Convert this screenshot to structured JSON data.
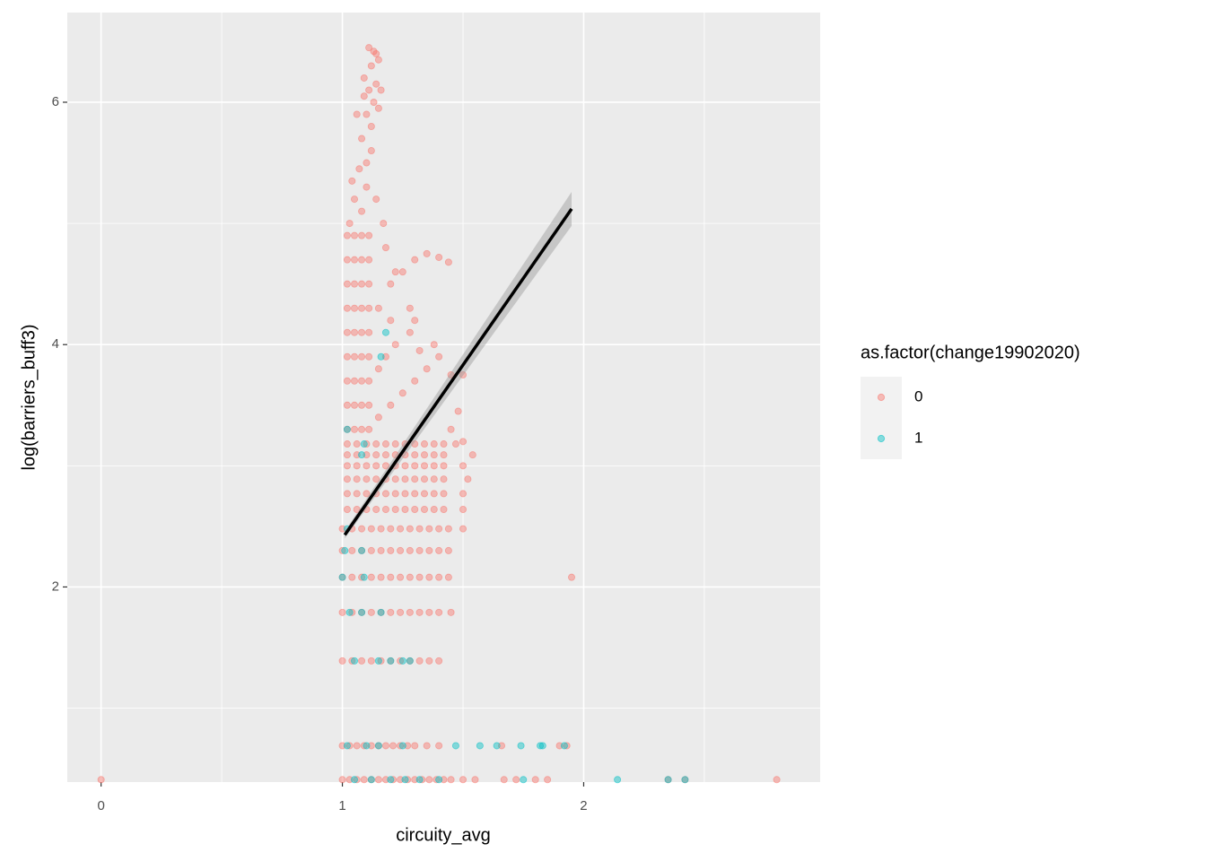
{
  "chart_data": {
    "type": "scatter",
    "x_label": "circuity_avg",
    "y_label": "log(barriers_buff3)",
    "legend_title": "as.factor(change19902020)",
    "legend_position": "right",
    "xlim": [
      -0.14,
      2.98
    ],
    "ylim": [
      0.39,
      6.74
    ],
    "xticks": [
      0,
      1,
      2
    ],
    "yticks": [
      2,
      4,
      6
    ],
    "minor_xticks": [
      0.5,
      1.5,
      2.5
    ],
    "minor_yticks": [
      1,
      3,
      5
    ],
    "grid": true,
    "series": [
      {
        "name": "0",
        "color": "#F8766D",
        "values": [
          [
            0,
            0.41
          ],
          [
            1,
            0.41
          ],
          [
            1.03,
            0.41
          ],
          [
            1.06,
            0.41
          ],
          [
            1.09,
            0.41
          ],
          [
            1.12,
            0.41
          ],
          [
            1.15,
            0.41
          ],
          [
            1.18,
            0.41
          ],
          [
            1.21,
            0.41
          ],
          [
            1.24,
            0.41
          ],
          [
            1.27,
            0.41
          ],
          [
            1.3,
            0.41
          ],
          [
            1.33,
            0.41
          ],
          [
            1.36,
            0.41
          ],
          [
            1.39,
            0.41
          ],
          [
            1.42,
            0.41
          ],
          [
            1.45,
            0.41
          ],
          [
            1.5,
            0.41
          ],
          [
            1.55,
            0.41
          ],
          [
            1.67,
            0.41
          ],
          [
            1.72,
            0.41
          ],
          [
            1.8,
            0.41
          ],
          [
            1.85,
            0.41
          ],
          [
            2.35,
            0.41
          ],
          [
            2.42,
            0.41
          ],
          [
            2.8,
            0.41
          ],
          [
            1,
            0.69
          ],
          [
            1.03,
            0.69
          ],
          [
            1.06,
            0.69
          ],
          [
            1.09,
            0.69
          ],
          [
            1.12,
            0.69
          ],
          [
            1.15,
            0.69
          ],
          [
            1.18,
            0.69
          ],
          [
            1.21,
            0.69
          ],
          [
            1.24,
            0.69
          ],
          [
            1.27,
            0.69
          ],
          [
            1.3,
            0.69
          ],
          [
            1.35,
            0.69
          ],
          [
            1.4,
            0.69
          ],
          [
            1.66,
            0.69
          ],
          [
            1.9,
            0.69
          ],
          [
            1.93,
            0.69
          ],
          [
            1,
            1.39
          ],
          [
            1.04,
            1.39
          ],
          [
            1.08,
            1.39
          ],
          [
            1.12,
            1.39
          ],
          [
            1.16,
            1.39
          ],
          [
            1.2,
            1.39
          ],
          [
            1.24,
            1.39
          ],
          [
            1.28,
            1.39
          ],
          [
            1.32,
            1.39
          ],
          [
            1.36,
            1.39
          ],
          [
            1.4,
            1.39
          ],
          [
            1,
            1.79
          ],
          [
            1.04,
            1.79
          ],
          [
            1.08,
            1.79
          ],
          [
            1.12,
            1.79
          ],
          [
            1.16,
            1.79
          ],
          [
            1.2,
            1.79
          ],
          [
            1.24,
            1.79
          ],
          [
            1.28,
            1.79
          ],
          [
            1.32,
            1.79
          ],
          [
            1.36,
            1.79
          ],
          [
            1.4,
            1.79
          ],
          [
            1.45,
            1.79
          ],
          [
            1,
            2.08
          ],
          [
            1.04,
            2.08
          ],
          [
            1.08,
            2.08
          ],
          [
            1.12,
            2.08
          ],
          [
            1.16,
            2.08
          ],
          [
            1.2,
            2.08
          ],
          [
            1.24,
            2.08
          ],
          [
            1.28,
            2.08
          ],
          [
            1.32,
            2.08
          ],
          [
            1.36,
            2.08
          ],
          [
            1.4,
            2.08
          ],
          [
            1.44,
            2.08
          ],
          [
            1.95,
            2.08
          ],
          [
            1,
            2.3
          ],
          [
            1.04,
            2.3
          ],
          [
            1.08,
            2.3
          ],
          [
            1.12,
            2.3
          ],
          [
            1.16,
            2.3
          ],
          [
            1.2,
            2.3
          ],
          [
            1.24,
            2.3
          ],
          [
            1.28,
            2.3
          ],
          [
            1.32,
            2.3
          ],
          [
            1.36,
            2.3
          ],
          [
            1.4,
            2.3
          ],
          [
            1.44,
            2.3
          ],
          [
            1,
            2.48
          ],
          [
            1.04,
            2.48
          ],
          [
            1.08,
            2.48
          ],
          [
            1.12,
            2.48
          ],
          [
            1.16,
            2.48
          ],
          [
            1.2,
            2.48
          ],
          [
            1.24,
            2.48
          ],
          [
            1.28,
            2.48
          ],
          [
            1.32,
            2.48
          ],
          [
            1.36,
            2.48
          ],
          [
            1.4,
            2.48
          ],
          [
            1.44,
            2.48
          ],
          [
            1.5,
            2.48
          ],
          [
            1.02,
            2.64
          ],
          [
            1.06,
            2.64
          ],
          [
            1.1,
            2.64
          ],
          [
            1.14,
            2.64
          ],
          [
            1.18,
            2.64
          ],
          [
            1.22,
            2.64
          ],
          [
            1.26,
            2.64
          ],
          [
            1.3,
            2.64
          ],
          [
            1.34,
            2.64
          ],
          [
            1.38,
            2.64
          ],
          [
            1.42,
            2.64
          ],
          [
            1.5,
            2.64
          ],
          [
            1.02,
            2.77
          ],
          [
            1.06,
            2.77
          ],
          [
            1.1,
            2.77
          ],
          [
            1.14,
            2.77
          ],
          [
            1.18,
            2.77
          ],
          [
            1.22,
            2.77
          ],
          [
            1.26,
            2.77
          ],
          [
            1.3,
            2.77
          ],
          [
            1.34,
            2.77
          ],
          [
            1.38,
            2.77
          ],
          [
            1.42,
            2.77
          ],
          [
            1.5,
            2.77
          ],
          [
            1.02,
            2.89
          ],
          [
            1.06,
            2.89
          ],
          [
            1.1,
            2.89
          ],
          [
            1.14,
            2.89
          ],
          [
            1.18,
            2.89
          ],
          [
            1.22,
            2.89
          ],
          [
            1.26,
            2.89
          ],
          [
            1.3,
            2.89
          ],
          [
            1.34,
            2.89
          ],
          [
            1.38,
            2.89
          ],
          [
            1.42,
            2.89
          ],
          [
            1.52,
            2.89
          ],
          [
            1.02,
            3.0
          ],
          [
            1.06,
            3.0
          ],
          [
            1.1,
            3.0
          ],
          [
            1.14,
            3.0
          ],
          [
            1.18,
            3.0
          ],
          [
            1.22,
            3.0
          ],
          [
            1.26,
            3.0
          ],
          [
            1.3,
            3.0
          ],
          [
            1.34,
            3.0
          ],
          [
            1.38,
            3.0
          ],
          [
            1.42,
            3.0
          ],
          [
            1.5,
            3.0
          ],
          [
            1.02,
            3.09
          ],
          [
            1.06,
            3.09
          ],
          [
            1.1,
            3.09
          ],
          [
            1.14,
            3.09
          ],
          [
            1.18,
            3.09
          ],
          [
            1.22,
            3.09
          ],
          [
            1.26,
            3.09
          ],
          [
            1.3,
            3.09
          ],
          [
            1.34,
            3.09
          ],
          [
            1.38,
            3.09
          ],
          [
            1.42,
            3.09
          ],
          [
            1.54,
            3.09
          ],
          [
            1.02,
            3.18
          ],
          [
            1.06,
            3.18
          ],
          [
            1.1,
            3.18
          ],
          [
            1.14,
            3.18
          ],
          [
            1.18,
            3.18
          ],
          [
            1.22,
            3.18
          ],
          [
            1.26,
            3.18
          ],
          [
            1.3,
            3.18
          ],
          [
            1.34,
            3.18
          ],
          [
            1.38,
            3.18
          ],
          [
            1.42,
            3.18
          ],
          [
            1.47,
            3.18
          ],
          [
            1.02,
            3.3
          ],
          [
            1.05,
            3.3
          ],
          [
            1.08,
            3.3
          ],
          [
            1.11,
            3.3
          ],
          [
            1.02,
            3.5
          ],
          [
            1.05,
            3.5
          ],
          [
            1.08,
            3.5
          ],
          [
            1.11,
            3.5
          ],
          [
            1.02,
            3.7
          ],
          [
            1.05,
            3.7
          ],
          [
            1.08,
            3.7
          ],
          [
            1.11,
            3.7
          ],
          [
            1.02,
            3.9
          ],
          [
            1.05,
            3.9
          ],
          [
            1.08,
            3.9
          ],
          [
            1.11,
            3.9
          ],
          [
            1.02,
            4.1
          ],
          [
            1.05,
            4.1
          ],
          [
            1.08,
            4.1
          ],
          [
            1.11,
            4.1
          ],
          [
            1.02,
            4.3
          ],
          [
            1.05,
            4.3
          ],
          [
            1.08,
            4.3
          ],
          [
            1.11,
            4.3
          ],
          [
            1.02,
            4.5
          ],
          [
            1.05,
            4.5
          ],
          [
            1.08,
            4.5
          ],
          [
            1.11,
            4.5
          ],
          [
            1.02,
            4.7
          ],
          [
            1.05,
            4.7
          ],
          [
            1.08,
            4.7
          ],
          [
            1.11,
            4.7
          ],
          [
            1.02,
            4.9
          ],
          [
            1.05,
            4.9
          ],
          [
            1.08,
            4.9
          ],
          [
            1.11,
            4.9
          ],
          [
            1.15,
            3.4
          ],
          [
            1.2,
            3.5
          ],
          [
            1.25,
            3.6
          ],
          [
            1.3,
            3.7
          ],
          [
            1.35,
            3.8
          ],
          [
            1.4,
            3.9
          ],
          [
            1.45,
            3.75
          ],
          [
            1.5,
            3.75
          ],
          [
            1.18,
            3.9
          ],
          [
            1.22,
            4.0
          ],
          [
            1.28,
            4.1
          ],
          [
            1.32,
            3.95
          ],
          [
            1.38,
            4.0
          ],
          [
            1.15,
            4.3
          ],
          [
            1.2,
            4.5
          ],
          [
            1.25,
            4.6
          ],
          [
            1.3,
            4.7
          ],
          [
            1.35,
            4.75
          ],
          [
            1.4,
            4.72
          ],
          [
            1.44,
            4.68
          ],
          [
            1.18,
            4.8
          ],
          [
            1.22,
            4.6
          ],
          [
            1.28,
            4.3
          ],
          [
            1.3,
            4.2
          ],
          [
            1.45,
            3.3
          ],
          [
            1.48,
            3.45
          ],
          [
            1.5,
            3.2
          ],
          [
            1.15,
            3.8
          ],
          [
            1.2,
            4.2
          ],
          [
            1.03,
            5.0
          ],
          [
            1.05,
            5.2
          ],
          [
            1.04,
            5.35
          ],
          [
            1.08,
            5.1
          ],
          [
            1.1,
            5.3
          ],
          [
            1.1,
            5.5
          ],
          [
            1.12,
            5.6
          ],
          [
            1.08,
            5.7
          ],
          [
            1.12,
            5.8
          ],
          [
            1.13,
            6.0
          ],
          [
            1.07,
            5.45
          ],
          [
            1.11,
            6.1
          ],
          [
            1.14,
            6.15
          ],
          [
            1.09,
            6.2
          ],
          [
            1.1,
            5.9
          ],
          [
            1.12,
            6.3
          ],
          [
            1.14,
            6.4
          ],
          [
            1.11,
            6.45
          ],
          [
            1.15,
            6.35
          ],
          [
            1.13,
            6.42
          ],
          [
            1.16,
            6.1
          ],
          [
            1.15,
            5.95
          ],
          [
            1.09,
            6.05
          ],
          [
            1.14,
            5.2
          ],
          [
            1.17,
            5.0
          ],
          [
            1.06,
            5.9
          ]
        ]
      },
      {
        "name": "1",
        "color": "#00BFC4",
        "values": [
          [
            1.05,
            0.41
          ],
          [
            1.12,
            0.41
          ],
          [
            1.2,
            0.41
          ],
          [
            1.26,
            0.41
          ],
          [
            1.32,
            0.41
          ],
          [
            1.4,
            0.41
          ],
          [
            1.75,
            0.41
          ],
          [
            2.14,
            0.41
          ],
          [
            2.35,
            0.41
          ],
          [
            2.42,
            0.41
          ],
          [
            1.02,
            0.69
          ],
          [
            1.1,
            0.69
          ],
          [
            1.15,
            0.69
          ],
          [
            1.25,
            0.69
          ],
          [
            1.47,
            0.69
          ],
          [
            1.57,
            0.69
          ],
          [
            1.64,
            0.69
          ],
          [
            1.74,
            0.69
          ],
          [
            1.82,
            0.69
          ],
          [
            1.83,
            0.69
          ],
          [
            1.92,
            0.69
          ],
          [
            1.05,
            1.39
          ],
          [
            1.15,
            1.39
          ],
          [
            1.2,
            1.39
          ],
          [
            1.25,
            1.39
          ],
          [
            1.28,
            1.39
          ],
          [
            1.03,
            1.79
          ],
          [
            1.08,
            1.79
          ],
          [
            1.16,
            1.79
          ],
          [
            1.0,
            2.08
          ],
          [
            1.09,
            2.08
          ],
          [
            1.01,
            2.3
          ],
          [
            1.08,
            2.3
          ],
          [
            1.02,
            2.48
          ],
          [
            1.08,
            3.09
          ],
          [
            1.09,
            3.18
          ],
          [
            1.02,
            3.3
          ],
          [
            1.16,
            3.9
          ],
          [
            1.18,
            4.1
          ]
        ]
      }
    ],
    "trend": {
      "color": "#000000",
      "x": [
        1.01,
        1.95
      ],
      "y": [
        2.43,
        5.12
      ],
      "lower": [
        2.4,
        4.98
      ],
      "upper": [
        2.46,
        5.26
      ]
    }
  }
}
